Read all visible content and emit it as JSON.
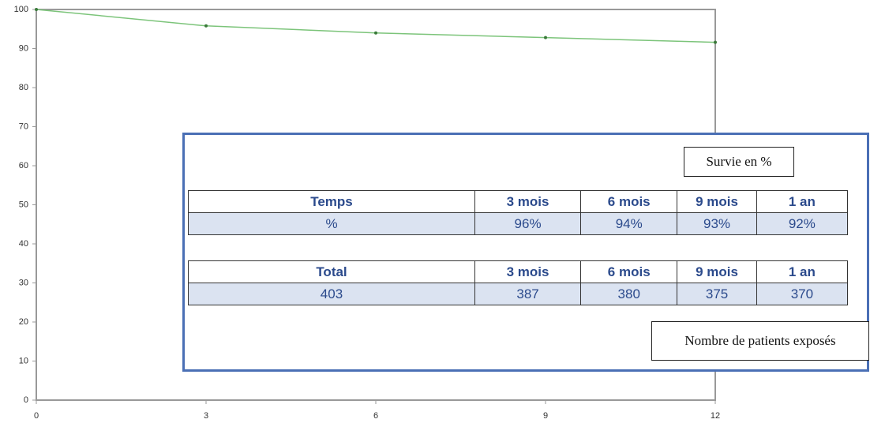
{
  "chart_data": {
    "type": "line",
    "x": [
      0,
      3,
      6,
      9,
      12
    ],
    "values": [
      100,
      95.8,
      94,
      92.8,
      91.6
    ],
    "color": "#7cc47a",
    "xlim": [
      0,
      12
    ],
    "ylim": [
      0,
      100
    ],
    "xticks": [
      0,
      3,
      6,
      9,
      12
    ],
    "yticks": [
      0,
      10,
      20,
      30,
      40,
      50,
      60,
      70,
      80,
      90,
      100
    ]
  },
  "overlay": {
    "survival_label": "Survie en %",
    "survival_table": {
      "header": [
        "Temps",
        "3 mois",
        "6 mois",
        "9 mois",
        "1 an"
      ],
      "row": [
        "%",
        "96%",
        "94%",
        "93%",
        "92%"
      ]
    },
    "patients_table": {
      "header": [
        "Total",
        "3 mois",
        "6 mois",
        "9 mois",
        "1 an"
      ],
      "row": [
        "403",
        "387",
        "380",
        "375",
        "370"
      ]
    },
    "patients_label": "Nombre de patients exposés"
  }
}
